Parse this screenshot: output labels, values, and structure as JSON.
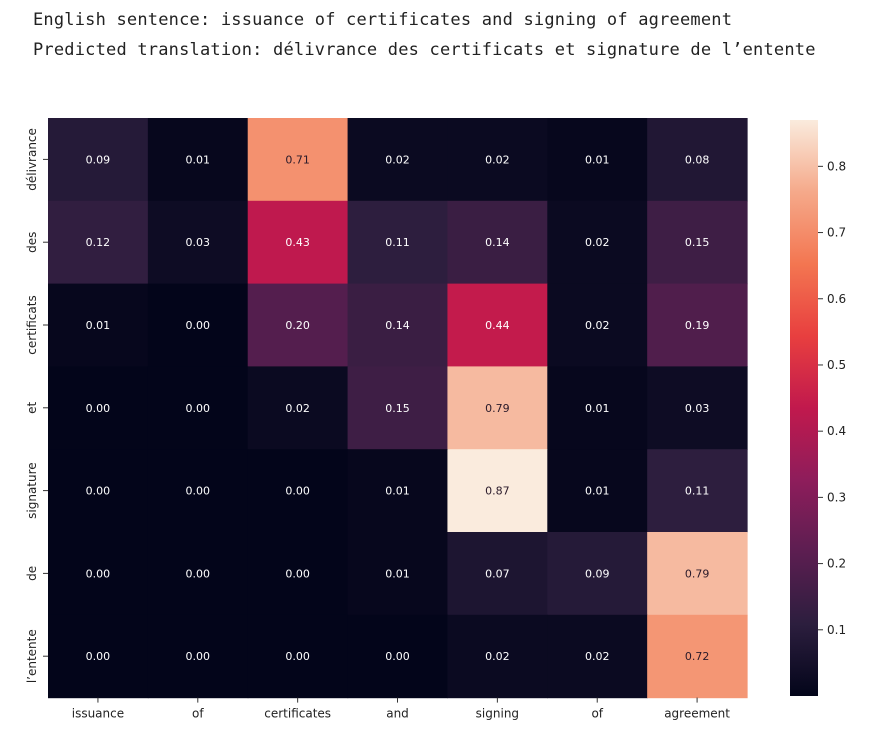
{
  "header": {
    "english_label": "English sentence:",
    "english_sentence": "issuance of certificates and signing of agreement",
    "prediction_label": "Predicted translation:",
    "predicted_translation": "délivrance des certificats et signature de l’entente"
  },
  "chart_data": {
    "type": "heatmap",
    "title": "",
    "xlabel": "",
    "ylabel": "",
    "x_categories": [
      "issuance",
      "of",
      "certificates",
      "and",
      "signing",
      "of",
      "agreement"
    ],
    "y_categories": [
      "délivrance",
      "des",
      "certificats",
      "et",
      "signature",
      "de",
      "l’entente"
    ],
    "values": [
      [
        0.09,
        0.01,
        0.71,
        0.02,
        0.02,
        0.01,
        0.08
      ],
      [
        0.12,
        0.03,
        0.43,
        0.11,
        0.14,
        0.02,
        0.15
      ],
      [
        0.01,
        0.0,
        0.2,
        0.14,
        0.44,
        0.02,
        0.19
      ],
      [
        0.0,
        0.0,
        0.02,
        0.15,
        0.79,
        0.01,
        0.03
      ],
      [
        0.0,
        0.0,
        0.0,
        0.01,
        0.87,
        0.01,
        0.11
      ],
      [
        0.0,
        0.0,
        0.0,
        0.01,
        0.07,
        0.09,
        0.79
      ],
      [
        0.0,
        0.0,
        0.0,
        0.0,
        0.02,
        0.02,
        0.72
      ]
    ],
    "value_labels": [
      [
        "0.09",
        "0.01",
        "0.71",
        "0.02",
        "0.02",
        "0.01",
        "0.08"
      ],
      [
        "0.12",
        "0.03",
        "0.43",
        "0.11",
        "0.14",
        "0.02",
        "0.15"
      ],
      [
        "0.01",
        "0.00",
        "0.20",
        "0.14",
        "0.44",
        "0.02",
        "0.19"
      ],
      [
        "0.00",
        "0.00",
        "0.02",
        "0.15",
        "0.79",
        "0.01",
        "0.03"
      ],
      [
        "0.00",
        "0.00",
        "0.00",
        "0.01",
        "0.87",
        "0.01",
        "0.11"
      ],
      [
        "0.00",
        "0.00",
        "0.00",
        "0.01",
        "0.07",
        "0.09",
        "0.79"
      ],
      [
        "0.00",
        "0.00",
        "0.00",
        "0.00",
        "0.02",
        "0.02",
        "0.72"
      ]
    ],
    "colormap": "rocket",
    "color_range": [
      0.0,
      0.87
    ],
    "colorbar": {
      "ticks": [
        0.1,
        0.2,
        0.3,
        0.4,
        0.5,
        0.6,
        0.7,
        0.8
      ],
      "tick_labels": [
        "0.1",
        "0.2",
        "0.3",
        "0.4",
        "0.5",
        "0.6",
        "0.7",
        "0.8"
      ],
      "placement": "right"
    },
    "grid": false
  }
}
